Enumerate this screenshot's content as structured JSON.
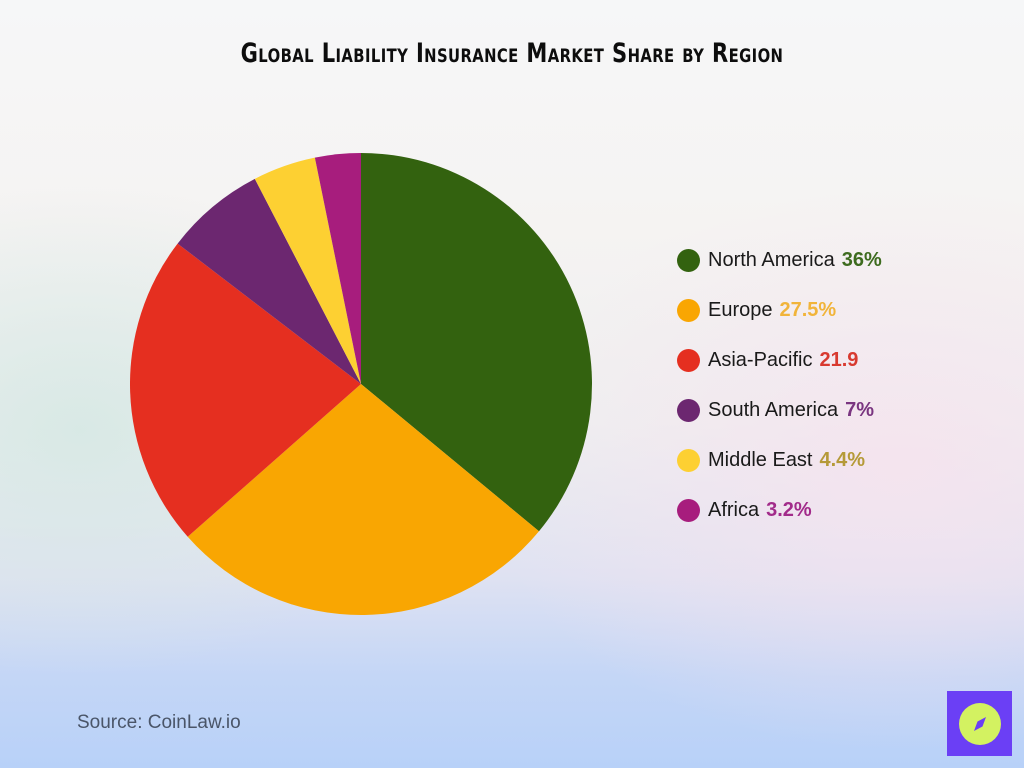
{
  "title": "Global Liability Insurance Market Share by Region",
  "source": "Source: CoinLaw.io",
  "logo": {
    "icon": "compass-icon",
    "bg_color": "#6b3ff5",
    "fg_color": "#d3f261"
  },
  "legend": [
    {
      "label": "North America",
      "value": "36%",
      "color": "#33620f",
      "text_color": "#3d6b1e"
    },
    {
      "label": "Europe",
      "value": "27.5%",
      "color": "#f9a602",
      "text_color": "#f1b43a"
    },
    {
      "label": "Asia-Pacific",
      "value": "21.9",
      "color": "#e52f20",
      "text_color": "#d83a30"
    },
    {
      "label": "South America",
      "value": "7%",
      "color": "#6c2770",
      "text_color": "#7a3580"
    },
    {
      "label": "Middle East",
      "value": "4.4%",
      "color": "#fdd032",
      "text_color": "#b59a38"
    },
    {
      "label": "Africa",
      "value": "3.2%",
      "color": "#a71d7d",
      "text_color": "#a22b8a"
    }
  ],
  "chart_data": {
    "type": "pie",
    "title": "Global Liability Insurance Market Share by Region",
    "categories": [
      "North America",
      "Europe",
      "Asia-Pacific",
      "South America",
      "Middle East",
      "Africa"
    ],
    "values": [
      36,
      27.5,
      21.9,
      7,
      4.4,
      3.2
    ],
    "colors": [
      "#33620f",
      "#f9a602",
      "#e52f20",
      "#6c2770",
      "#fdd032",
      "#a71d7d"
    ],
    "start_angle": "12 o'clock",
    "direction": "clockwise",
    "legend_position": "right",
    "source": "CoinLaw.io"
  }
}
